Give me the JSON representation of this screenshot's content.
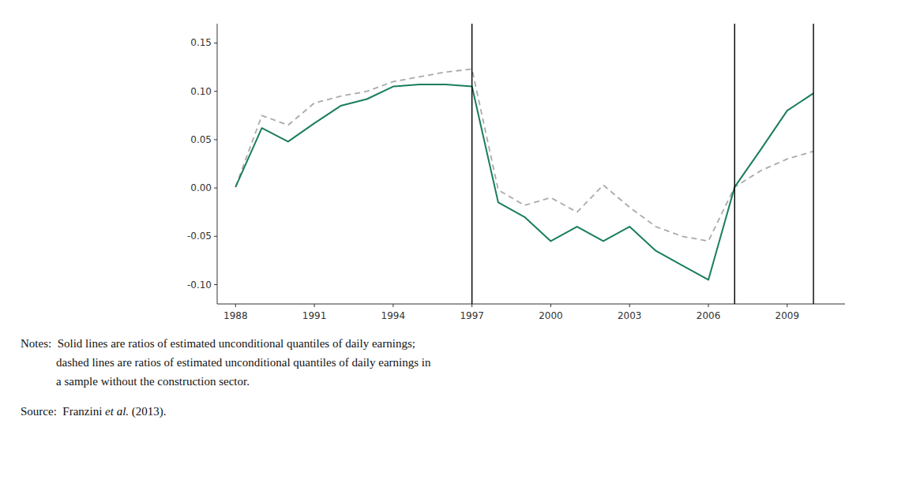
{
  "chart_data": {
    "type": "line",
    "x": [
      1988,
      1989,
      1990,
      1991,
      1992,
      1993,
      1994,
      1995,
      1996,
      1997,
      1998,
      1999,
      2000,
      2001,
      2002,
      2003,
      2004,
      2005,
      2006,
      2007,
      2008,
      2009,
      2010
    ],
    "series": [
      {
        "color": "#aaaaaa",
        "line_style": "dashed",
        "values": [
          0.001,
          0.075,
          0.065,
          0.088,
          0.095,
          0.1,
          0.11,
          0.115,
          0.12,
          0.123,
          -0.002,
          -0.018,
          -0.01,
          -0.025,
          0.003,
          -0.02,
          -0.04,
          -0.05,
          -0.055,
          0.001,
          0.018,
          0.03,
          0.038
        ]
      },
      {
        "color": "#1a7d5e",
        "line_style": "solid",
        "values": [
          0.001,
          0.062,
          0.048,
          0.067,
          0.085,
          0.092,
          0.105,
          0.107,
          0.107,
          0.105,
          -0.015,
          -0.03,
          -0.055,
          -0.04,
          -0.055,
          -0.04,
          -0.065,
          -0.08,
          -0.095,
          0.001,
          0.04,
          0.08,
          0.098
        ]
      }
    ],
    "vlines": [
      1997,
      2007,
      2010
    ],
    "xlim": [
      1987.3,
      2011.2
    ],
    "xticks": [
      1988,
      1991,
      1994,
      1997,
      2000,
      2003,
      2006,
      2009
    ],
    "ylim": [
      -0.12,
      0.17
    ],
    "yticks": [
      {
        "value": -0.1,
        "label": "-0.10"
      },
      -0.05,
      {
        "value": 0,
        "label": "0.00"
      },
      0.05,
      {
        "value": 0.1,
        "label": "0.10"
      },
      0.15
    ],
    "grid": false,
    "annotations": [
      "Notes:  Solid lines are ratios of estimated unconditional quantiles of daily earnings;",
      "            dashed lines are ratios of estimated unconditional quantiles of daily earnings in",
      "            a sample without the construction sector."
    ],
    "source": [
      "Source:  Franzini ",
      "et al.",
      " (2013)."
    ]
  }
}
